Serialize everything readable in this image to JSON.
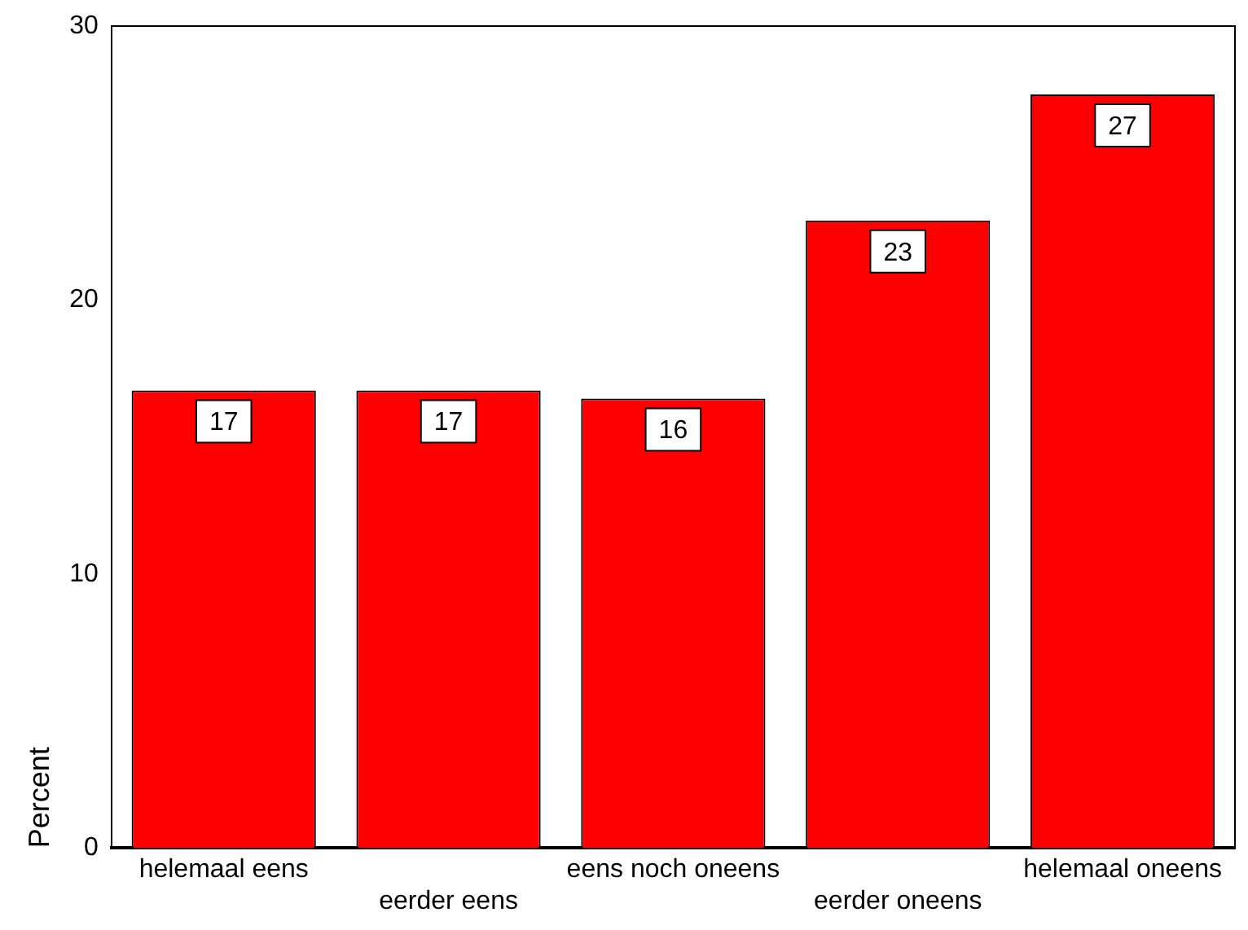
{
  "chart_data": {
    "type": "bar",
    "ylabel": "Percent",
    "categories": [
      "helemaal eens",
      "eerder eens",
      "eens noch oneens",
      "eerder oneens",
      "helemaal oneens"
    ],
    "values": [
      16.7,
      16.7,
      16.4,
      22.9,
      27.5
    ],
    "value_labels": [
      "17",
      "17",
      "16",
      "23",
      "27"
    ],
    "color": "#ff0000",
    "ylim": [
      0,
      30
    ],
    "yticks": [
      0,
      10,
      20,
      30
    ],
    "grid": false,
    "legend": false
  }
}
